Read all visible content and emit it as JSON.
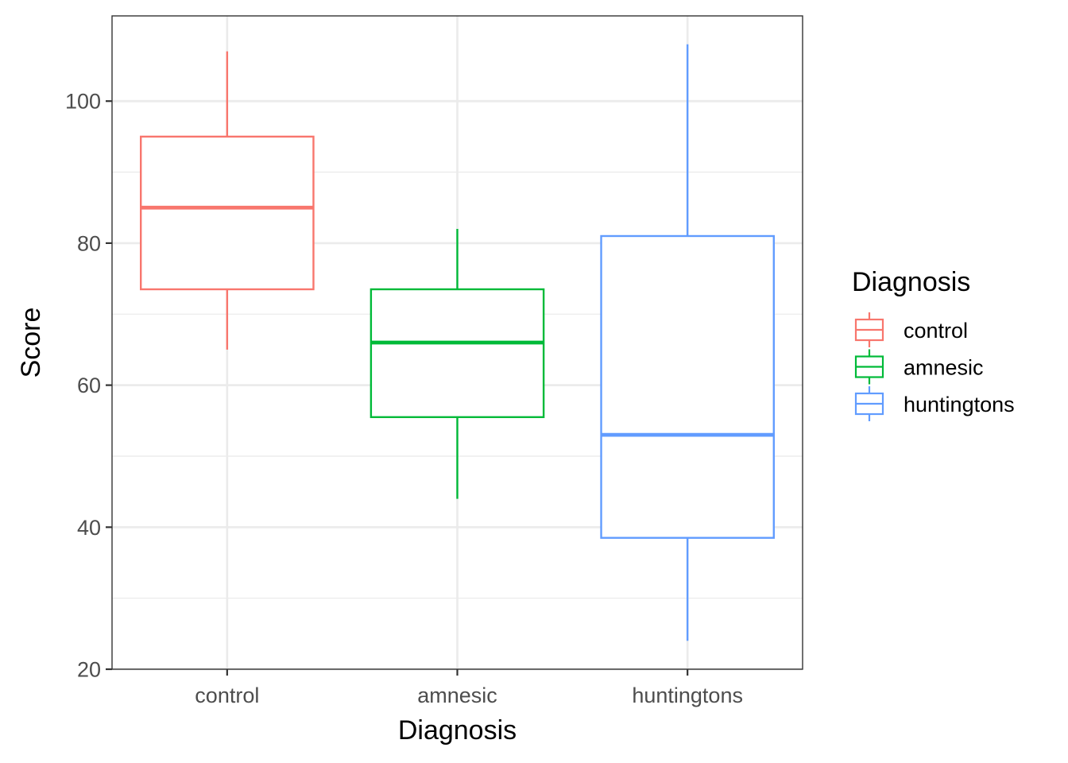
{
  "chart_data": {
    "type": "boxplot",
    "xlabel": "Diagnosis",
    "ylabel": "Score",
    "categories": [
      "control",
      "amnesic",
      "huntingtons"
    ],
    "colors": {
      "control": "#F8766D",
      "amnesic": "#00BA38",
      "huntingtons": "#619CFF"
    },
    "boxes": [
      {
        "category": "control",
        "whisker_low": 65,
        "q1": 73.5,
        "median": 85,
        "q3": 95,
        "whisker_high": 107
      },
      {
        "category": "amnesic",
        "whisker_low": 44,
        "q1": 55.5,
        "median": 66,
        "q3": 73.5,
        "whisker_high": 82
      },
      {
        "category": "huntingtons",
        "whisker_low": 24,
        "q1": 38.5,
        "median": 53,
        "q3": 81,
        "whisker_high": 108
      }
    ],
    "ylim": [
      20,
      112
    ],
    "y_ticks": [
      20,
      40,
      60,
      80,
      100
    ],
    "grid": true,
    "legend": {
      "title": "Diagnosis",
      "position": "right",
      "entries": [
        "control",
        "amnesic",
        "huntingtons"
      ]
    }
  }
}
